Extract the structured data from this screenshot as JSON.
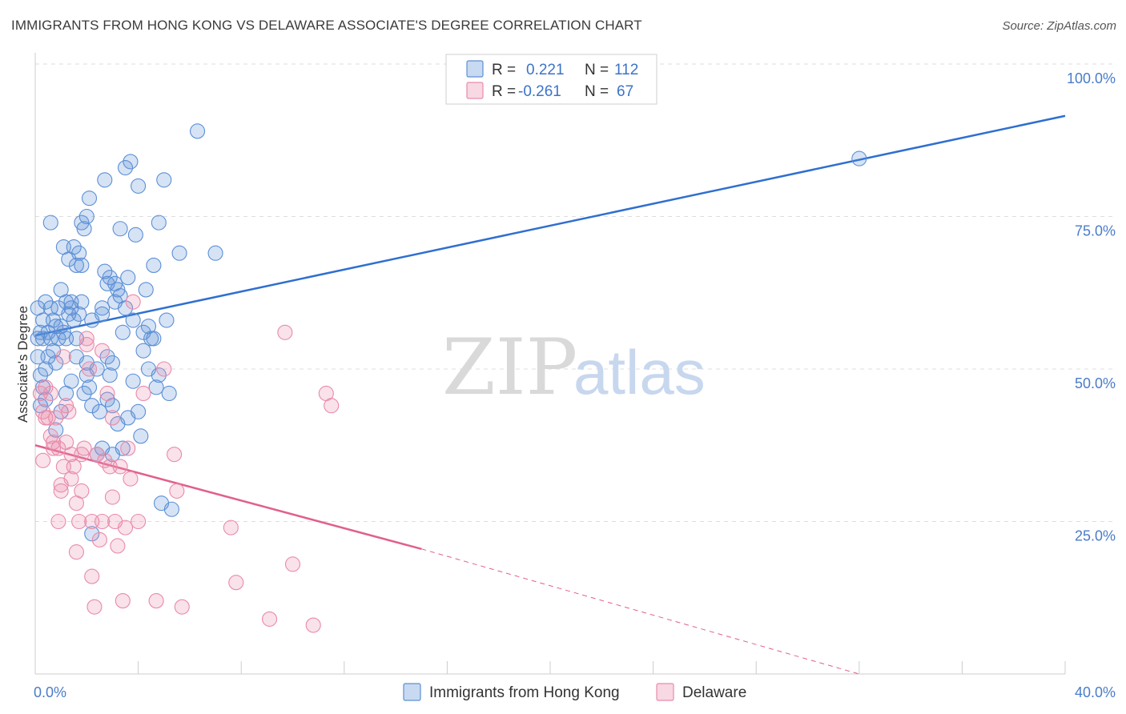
{
  "title": "IMMIGRANTS FROM HONG KONG VS DELAWARE ASSOCIATE'S DEGREE CORRELATION CHART",
  "source": "Source: ZipAtlas.com",
  "watermark": {
    "zip": "ZIP",
    "atlas": "atlas"
  },
  "colors": {
    "blue": "#5b8fd6",
    "blue_line": "#2f6fd0",
    "pink": "#e98aaa",
    "pink_line": "#e0608c",
    "grid": "#dddddd"
  },
  "legend": {
    "rows": [
      {
        "r_label": "R =",
        "r_value": "0.221",
        "n_label": "N =",
        "n_value": "112"
      },
      {
        "r_label": "R =",
        "r_value": "-0.261",
        "n_label": "N =",
        "n_value": "67"
      }
    ]
  },
  "chart_data": {
    "type": "scatter",
    "title": "IMMIGRANTS FROM HONG KONG VS DELAWARE ASSOCIATE'S DEGREE CORRELATION CHART",
    "xlabel": "",
    "ylabel": "Associate's Degree",
    "xlim": [
      0,
      40
    ],
    "ylim": [
      0,
      100
    ],
    "x_tick_labels": [
      "0.0%",
      "40.0%"
    ],
    "y_tick_labels": [
      "100.0%",
      "75.0%",
      "50.0%",
      "25.0%"
    ],
    "y_ticks": [
      100,
      75,
      50,
      25
    ],
    "grid": true,
    "legend_position": "top-center",
    "series": [
      {
        "name": "Immigrants from Hong Kong",
        "color": "#5b8fd6",
        "trend": {
          "x": [
            0,
            40
          ],
          "y": [
            55.5,
            91.5
          ],
          "dashed_after": null
        },
        "points": [
          [
            0.2,
            56
          ],
          [
            0.3,
            58
          ],
          [
            0.3,
            55
          ],
          [
            0.4,
            61
          ],
          [
            0.5,
            56
          ],
          [
            0.5,
            52
          ],
          [
            0.2,
            49
          ],
          [
            0.3,
            47
          ],
          [
            0.2,
            44
          ],
          [
            0.4,
            45
          ],
          [
            0.6,
            60
          ],
          [
            0.6,
            55
          ],
          [
            0.7,
            58
          ],
          [
            0.7,
            53
          ],
          [
            0.8,
            51
          ],
          [
            0.8,
            57
          ],
          [
            0.9,
            60
          ],
          [
            0.9,
            55
          ],
          [
            1.0,
            63
          ],
          [
            1.0,
            57
          ],
          [
            1.1,
            70
          ],
          [
            1.1,
            56
          ],
          [
            1.2,
            61
          ],
          [
            1.2,
            55
          ],
          [
            1.3,
            68
          ],
          [
            1.3,
            59
          ],
          [
            1.4,
            61
          ],
          [
            1.4,
            48
          ],
          [
            1.5,
            70
          ],
          [
            1.5,
            58
          ],
          [
            1.6,
            67
          ],
          [
            1.6,
            52
          ],
          [
            1.7,
            69
          ],
          [
            1.7,
            59
          ],
          [
            1.8,
            74
          ],
          [
            1.8,
            61
          ],
          [
            1.9,
            73
          ],
          [
            1.9,
            46
          ],
          [
            2.0,
            75
          ],
          [
            2.0,
            49
          ],
          [
            2.1,
            78
          ],
          [
            2.1,
            47
          ],
          [
            2.2,
            58
          ],
          [
            2.2,
            44
          ],
          [
            2.4,
            50
          ],
          [
            2.5,
            43
          ],
          [
            2.6,
            37
          ],
          [
            2.6,
            60
          ],
          [
            2.7,
            81
          ],
          [
            2.7,
            66
          ],
          [
            2.8,
            64
          ],
          [
            2.8,
            52
          ],
          [
            2.9,
            65
          ],
          [
            2.9,
            49
          ],
          [
            3.0,
            44
          ],
          [
            3.0,
            51
          ],
          [
            3.1,
            64
          ],
          [
            3.1,
            61
          ],
          [
            3.2,
            41
          ],
          [
            3.3,
            73
          ],
          [
            3.3,
            62
          ],
          [
            3.4,
            37
          ],
          [
            3.5,
            83
          ],
          [
            3.5,
            60
          ],
          [
            3.6,
            65
          ],
          [
            3.7,
            84
          ],
          [
            3.8,
            48
          ],
          [
            3.9,
            72
          ],
          [
            4.0,
            80
          ],
          [
            4.1,
            39
          ],
          [
            4.2,
            53
          ],
          [
            4.3,
            63
          ],
          [
            4.4,
            50
          ],
          [
            4.5,
            55
          ],
          [
            4.6,
            67
          ],
          [
            4.7,
            47
          ],
          [
            4.8,
            74
          ],
          [
            4.9,
            28
          ],
          [
            5.0,
            81
          ],
          [
            5.1,
            58
          ],
          [
            5.3,
            27
          ],
          [
            5.6,
            69
          ],
          [
            6.3,
            89
          ],
          [
            7.0,
            69
          ],
          [
            0.1,
            55
          ],
          [
            0.1,
            60
          ],
          [
            0.1,
            52
          ],
          [
            0.4,
            50
          ],
          [
            0.6,
            74
          ],
          [
            0.8,
            40
          ],
          [
            1.0,
            43
          ],
          [
            1.2,
            46
          ],
          [
            1.4,
            60
          ],
          [
            1.6,
            55
          ],
          [
            1.8,
            67
          ],
          [
            2.0,
            51
          ],
          [
            2.2,
            23
          ],
          [
            2.4,
            36
          ],
          [
            2.6,
            59
          ],
          [
            2.8,
            45
          ],
          [
            3.0,
            36
          ],
          [
            3.2,
            63
          ],
          [
            3.4,
            56
          ],
          [
            3.6,
            42
          ],
          [
            3.8,
            58
          ],
          [
            4.0,
            43
          ],
          [
            4.2,
            56
          ],
          [
            4.4,
            57
          ],
          [
            4.6,
            55
          ],
          [
            4.8,
            49
          ],
          [
            32.0,
            84.5
          ],
          [
            5.2,
            46
          ]
        ]
      },
      {
        "name": "Delaware",
        "color": "#e98aaa",
        "trend": {
          "x": [
            0,
            15
          ],
          "y": [
            37.5,
            20.5
          ],
          "dashed_to": [
            32,
            0
          ]
        },
        "points": [
          [
            0.2,
            46
          ],
          [
            0.3,
            43
          ],
          [
            0.3,
            35
          ],
          [
            0.4,
            47
          ],
          [
            0.5,
            42
          ],
          [
            0.6,
            46
          ],
          [
            0.6,
            39
          ],
          [
            0.7,
            38
          ],
          [
            0.7,
            37
          ],
          [
            0.8,
            42
          ],
          [
            0.9,
            37
          ],
          [
            0.9,
            25
          ],
          [
            1.0,
            31
          ],
          [
            1.0,
            30
          ],
          [
            1.1,
            34
          ],
          [
            1.2,
            38
          ],
          [
            1.2,
            44
          ],
          [
            1.3,
            43
          ],
          [
            1.4,
            32
          ],
          [
            1.4,
            36
          ],
          [
            1.5,
            34
          ],
          [
            1.6,
            28
          ],
          [
            1.6,
            20
          ],
          [
            1.7,
            25
          ],
          [
            1.8,
            30
          ],
          [
            1.8,
            36
          ],
          [
            1.9,
            37
          ],
          [
            2.0,
            55
          ],
          [
            2.1,
            50
          ],
          [
            2.2,
            25
          ],
          [
            2.2,
            16
          ],
          [
            2.3,
            11
          ],
          [
            2.4,
            36
          ],
          [
            2.5,
            22
          ],
          [
            2.6,
            25
          ],
          [
            2.6,
            53
          ],
          [
            2.7,
            35
          ],
          [
            2.8,
            46
          ],
          [
            2.9,
            34
          ],
          [
            3.0,
            29
          ],
          [
            3.1,
            25
          ],
          [
            3.2,
            21
          ],
          [
            3.3,
            34
          ],
          [
            3.4,
            12
          ],
          [
            3.5,
            24
          ],
          [
            3.6,
            37
          ],
          [
            3.7,
            32
          ],
          [
            3.8,
            61
          ],
          [
            4.0,
            25
          ],
          [
            4.2,
            46
          ],
          [
            4.7,
            12
          ],
          [
            5.0,
            50
          ],
          [
            5.4,
            36
          ],
          [
            5.5,
            30
          ],
          [
            5.7,
            11
          ],
          [
            7.6,
            24
          ],
          [
            7.8,
            15
          ],
          [
            9.1,
            9
          ],
          [
            9.7,
            56
          ],
          [
            10.0,
            18
          ],
          [
            10.8,
            8
          ],
          [
            11.3,
            46
          ],
          [
            11.5,
            44
          ],
          [
            0.4,
            42
          ],
          [
            1.1,
            52
          ],
          [
            2.0,
            54
          ],
          [
            3.0,
            42
          ]
        ]
      }
    ]
  },
  "bottom_legend": [
    {
      "label": "Immigrants from Hong Kong"
    },
    {
      "label": "Delaware"
    }
  ]
}
